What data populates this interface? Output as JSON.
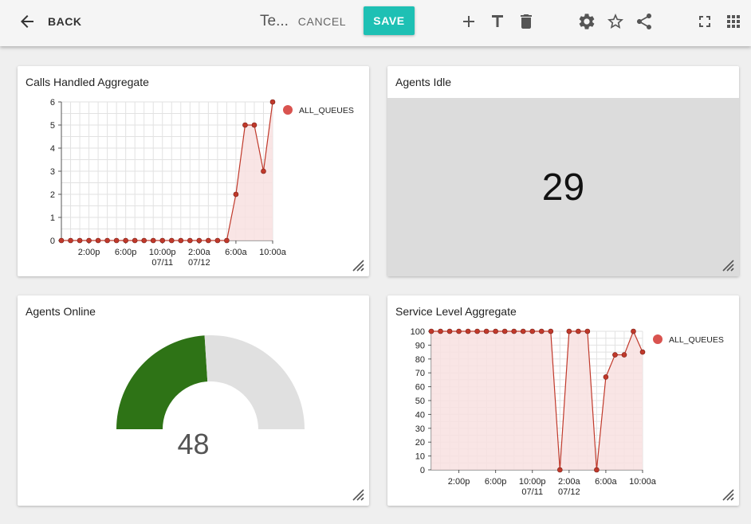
{
  "toolbar": {
    "back_label": "BACK",
    "title": "Te...",
    "cancel_label": "CANCEL",
    "save_label": "SAVE",
    "icons": [
      "add-icon",
      "text-icon",
      "delete-icon",
      "settings-icon",
      "star-icon",
      "share-icon",
      "fullscreen-icon",
      "apps-grid-icon"
    ]
  },
  "colors": {
    "accent": "#1ec0b4",
    "series": "#c0392b",
    "series_fill": "#f8e1e1",
    "gauge_fill": "#2e7316",
    "gauge_track": "#e0e0e0",
    "idle_bg": "#dcdcdc"
  },
  "widgets": {
    "calls": {
      "title": "Calls Handled Aggregate"
    },
    "idle": {
      "title": "Agents Idle",
      "value": "29"
    },
    "online": {
      "title": "Agents Online",
      "value": "48",
      "fraction": 0.48
    },
    "service": {
      "title": "Service Level Aggregate"
    }
  },
  "chart_data": [
    {
      "type": "area",
      "title": "Calls Handled Aggregate",
      "series": [
        {
          "name": "ALL_QUEUES",
          "values": [
            0,
            0,
            0,
            0,
            0,
            0,
            0,
            0,
            0,
            0,
            0,
            0,
            0,
            0,
            0,
            0,
            0,
            0,
            0,
            2,
            5,
            5,
            3,
            6
          ]
        }
      ],
      "x_tick_labels": [
        "2:00p",
        "6:00p",
        "10:00p\n07/11",
        "2:00a\n07/12",
        "6:00a",
        "10:00a"
      ],
      "y_ticks": [
        0,
        1,
        2,
        3,
        4,
        5,
        6
      ],
      "ylim": [
        0,
        6
      ],
      "grid": true,
      "legend": "top-right"
    },
    {
      "type": "area",
      "title": "Service Level Aggregate",
      "series": [
        {
          "name": "ALL_QUEUES",
          "values": [
            100,
            100,
            100,
            100,
            100,
            100,
            100,
            100,
            100,
            100,
            100,
            100,
            100,
            100,
            0,
            100,
            100,
            100,
            0,
            67,
            83,
            83,
            100,
            85
          ]
        }
      ],
      "x_tick_labels": [
        "2:00p",
        "6:00p",
        "10:00p\n07/11",
        "2:00a\n07/12",
        "6:00a",
        "10:00a"
      ],
      "y_ticks": [
        0,
        10,
        20,
        30,
        40,
        50,
        60,
        70,
        80,
        90,
        100
      ],
      "ylim": [
        0,
        100
      ],
      "grid": true,
      "legend": "top-right"
    }
  ]
}
